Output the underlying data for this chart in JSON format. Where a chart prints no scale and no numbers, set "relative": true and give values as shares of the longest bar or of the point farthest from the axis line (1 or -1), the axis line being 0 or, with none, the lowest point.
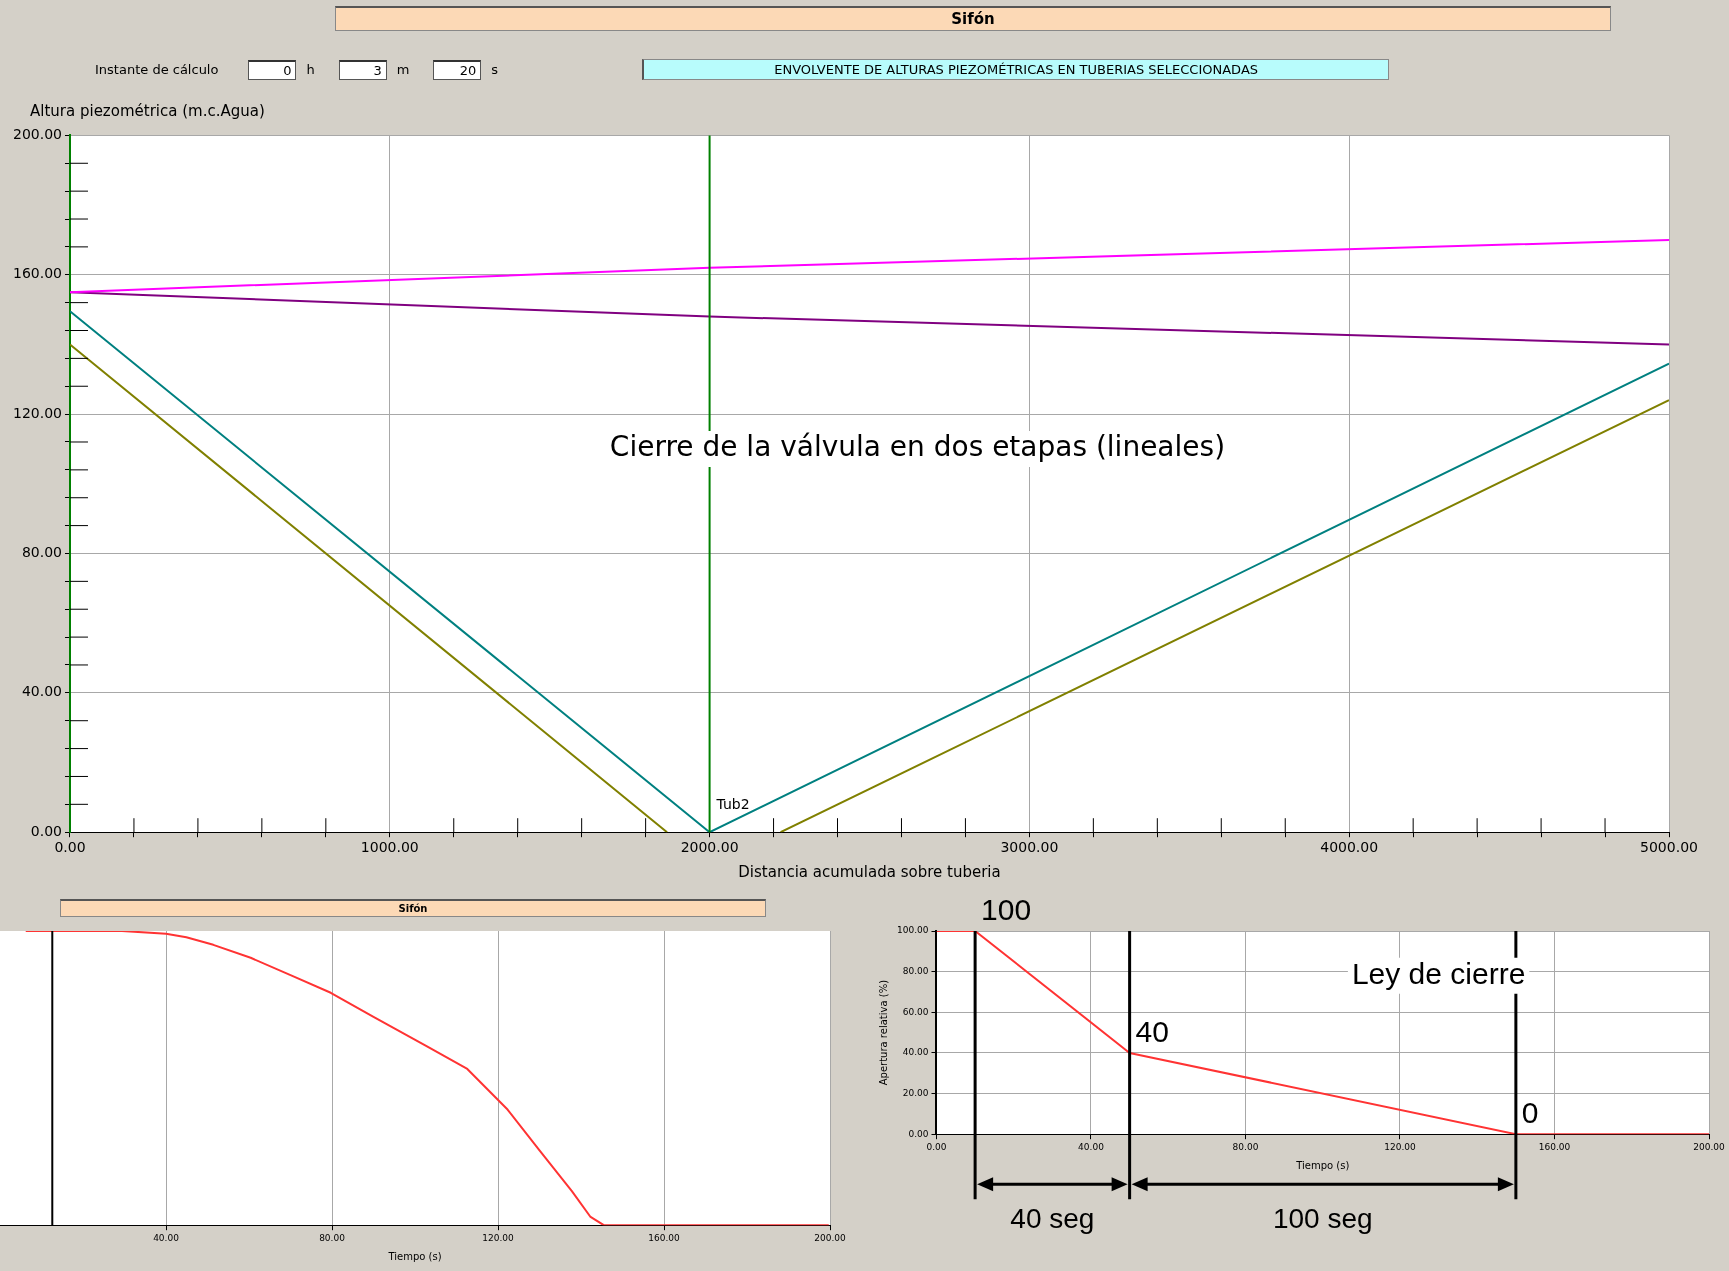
{
  "chart_data": [
    {
      "type": "line",
      "title": "Sifón",
      "subtitle": "ENVOLVENTE DE ALTURAS PIEZOMÉTRICAS EN TUBERIAS SELECCIONADAS",
      "ylabel": "Altura piezométrica (m.c.Agua)",
      "xlabel": "Distancia acumulada sobre tuberia",
      "annotations": [
        "Cierre de la válvula en dos etapas (lineales)",
        "Instante de cálculo",
        "0",
        "h",
        "3",
        "m",
        "20",
        "s"
      ],
      "series": [
        {
          "color": "#ff00ff",
          "x": [
            0,
            2000,
            5000
          ],
          "values": [
            155,
            162,
            170
          ]
        },
        {
          "color": "#800080",
          "x": [
            0,
            2000,
            5000
          ],
          "values": [
            155,
            148,
            140
          ]
        },
        {
          "color": "#008080",
          "x": [
            0,
            2000,
            5000
          ],
          "values": [
            149.5,
            0,
            134.5
          ]
        },
        {
          "color": "#808000",
          "x": [
            0,
            1867,
            2000,
            2222,
            5000
          ],
          "values": [
            140,
            0,
            null,
            0,
            124
          ]
        }
      ],
      "xlim": [
        0,
        5000
      ],
      "ylim": [
        0,
        200
      ],
      "xticks": [
        {
          "value": 0,
          "label": "0.00"
        },
        {
          "value": 200,
          "label": null
        },
        {
          "value": 400,
          "label": null
        },
        {
          "value": 600,
          "label": null
        },
        {
          "value": 800,
          "label": null
        },
        {
          "value": 1000,
          "label": "1000.00"
        },
        {
          "value": 1200,
          "label": null
        },
        {
          "value": 1400,
          "label": null
        },
        {
          "value": 1600,
          "label": null
        },
        {
          "value": 1800,
          "label": null
        },
        {
          "value": 2000,
          "label": "2000.00"
        },
        {
          "value": 2200,
          "label": null
        },
        {
          "value": 2400,
          "label": null
        },
        {
          "value": 2600,
          "label": null
        },
        {
          "value": 2800,
          "label": null
        },
        {
          "value": 3000,
          "label": "3000.00"
        },
        {
          "value": 3200,
          "label": null
        },
        {
          "value": 3400,
          "label": null
        },
        {
          "value": 3600,
          "label": null
        },
        {
          "value": 3800,
          "label": null
        },
        {
          "value": 4000,
          "label": "4000.00"
        },
        {
          "value": 4200,
          "label": null
        },
        {
          "value": 4400,
          "label": null
        },
        {
          "value": 4600,
          "label": null
        },
        {
          "value": 4800,
          "label": null
        },
        {
          "value": 5000,
          "label": "5000.00"
        }
      ],
      "yticks": [
        {
          "value": 0,
          "label": "0.00"
        },
        {
          "value": 8,
          "label": null
        },
        {
          "value": 16,
          "label": null
        },
        {
          "value": 24,
          "label": null
        },
        {
          "value": 32,
          "label": null
        },
        {
          "value": 40,
          "label": "40.00"
        },
        {
          "value": 48,
          "label": null
        },
        {
          "value": 56,
          "label": null
        },
        {
          "value": 64,
          "label": null
        },
        {
          "value": 72,
          "label": null
        },
        {
          "value": 80,
          "label": "80.00"
        },
        {
          "value": 88,
          "label": null
        },
        {
          "value": 96,
          "label": null
        },
        {
          "value": 104,
          "label": null
        },
        {
          "value": 112,
          "label": null
        },
        {
          "value": 120,
          "label": "120.00"
        },
        {
          "value": 128,
          "label": null
        },
        {
          "value": 136,
          "label": null
        },
        {
          "value": 144,
          "label": null
        },
        {
          "value": 152,
          "label": null
        },
        {
          "value": 160,
          "label": "160.00"
        },
        {
          "value": 168,
          "label": null
        },
        {
          "value": 176,
          "label": null
        },
        {
          "value": 184,
          "label": null
        },
        {
          "value": 192,
          "label": null
        },
        {
          "value": 200,
          "label": "200.00"
        }
      ],
      "ref_lines": [
        {
          "axis": "x",
          "value": 2000,
          "label": "Tub2",
          "color": "#008000"
        }
      ],
      "grid": true,
      "marker": "none"
    },
    {
      "type": "line",
      "title": "Sifón",
      "xlabel": "Tiempo (s)",
      "relative": true,
      "series": [
        {
          "color": "#ff3333",
          "x": [
            6.2,
            29.4,
            40,
            44.9,
            51.4,
            60.4,
            70.7,
            79.7,
            90,
            103,
            112.6,
            122.3,
            130,
            137.8,
            142.3,
            145.5,
            199.7
          ],
          "values": [
            1,
            1,
            0.991,
            0.979,
            0.953,
            0.909,
            0.846,
            0.79,
            0.708,
            0.607,
            0.531,
            0.393,
            0.254,
            0.116,
            0.028,
            0,
            0
          ]
        }
      ],
      "xlim": [
        0,
        200
      ],
      "xticks": [
        {
          "value": 40,
          "label": "40.00"
        },
        {
          "value": 80,
          "label": "80.00"
        },
        {
          "value": 120,
          "label": "120.00"
        },
        {
          "value": 160,
          "label": "160.00"
        },
        {
          "value": 200,
          "label": "200.00"
        }
      ],
      "ref_lines": [
        {
          "axis": "x",
          "value": 12.6,
          "color": "#000000"
        }
      ],
      "grid": "x",
      "marker": "none"
    },
    {
      "type": "line",
      "xlabel": "Tiempo (s)",
      "ylabel": "Apertura relativa (%)",
      "annotations": [
        "Ley de cierre",
        {
          "text": "100",
          "x": 10,
          "y": 100
        },
        {
          "text": "40",
          "x": 50,
          "y": 40
        },
        {
          "text": "0",
          "x": 150,
          "y": 0
        },
        "40 seg",
        "100 seg"
      ],
      "series": [
        {
          "color": "#ff3333",
          "x": [
            0,
            10,
            50,
            150,
            200
          ],
          "values": [
            100,
            100,
            40,
            0,
            0
          ]
        }
      ],
      "xlim": [
        0,
        200
      ],
      "ylim": [
        0,
        100
      ],
      "xticks": [
        {
          "value": 0,
          "label": "0.00"
        },
        {
          "value": 40,
          "label": "40.00"
        },
        {
          "value": 80,
          "label": "80.00"
        },
        {
          "value": 120,
          "label": "120.00"
        },
        {
          "value": 160,
          "label": "160.00"
        },
        {
          "value": 200,
          "label": "200.00"
        }
      ],
      "yticks": [
        {
          "value": 0,
          "label": "0.00"
        },
        {
          "value": 20,
          "label": "20.00"
        },
        {
          "value": 40,
          "label": "40.00"
        },
        {
          "value": 60,
          "label": "60.00"
        },
        {
          "value": 80,
          "label": "80.00"
        },
        {
          "value": 100,
          "label": "100.00"
        }
      ],
      "ref_lines": [
        {
          "axis": "x",
          "value": 10,
          "color": "#000000"
        },
        {
          "axis": "x",
          "value": 50,
          "color": "#000000"
        },
        {
          "axis": "x",
          "value": 150,
          "color": "#000000"
        }
      ],
      "grid": true,
      "marker": "none"
    }
  ]
}
